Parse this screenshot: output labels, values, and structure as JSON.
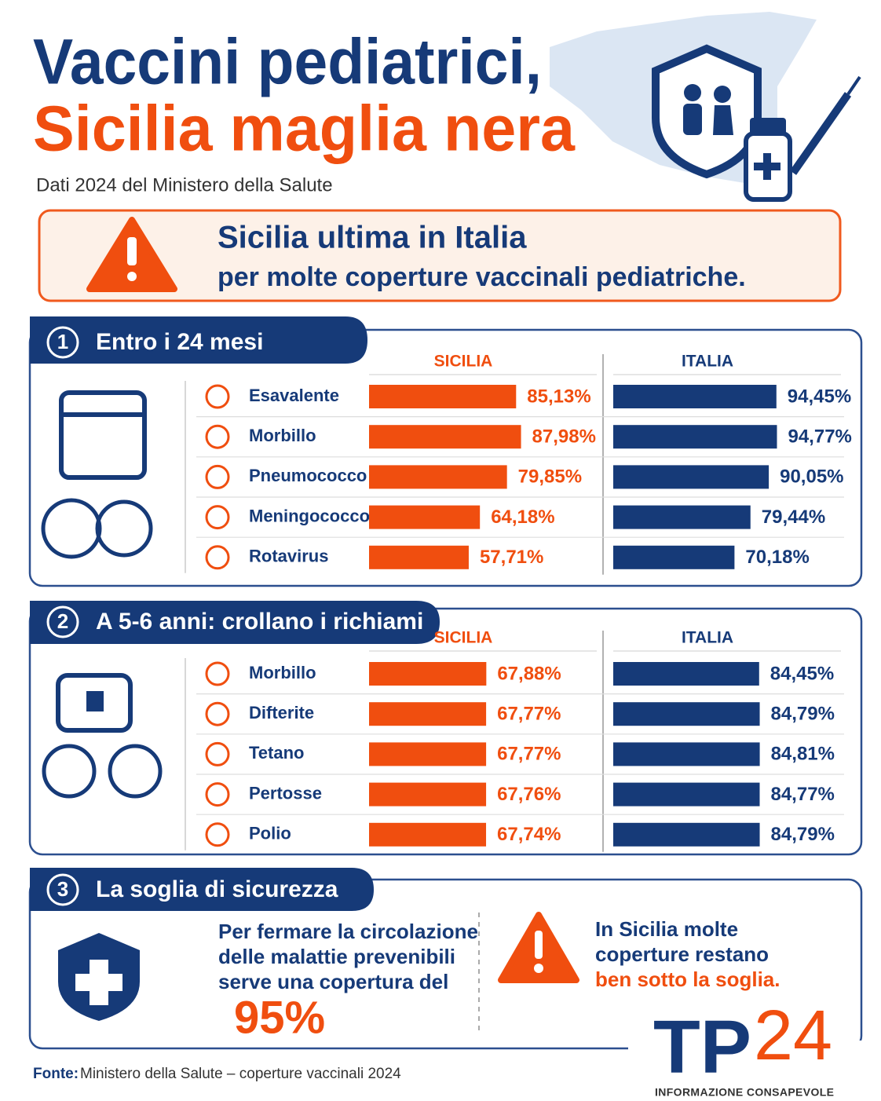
{
  "header": {
    "title_line1": "Vaccini pediatrici,",
    "title_line2": "Sicilia maglia nera",
    "subtitle": "Dati 2024 del Ministero della Salute"
  },
  "alert": {
    "line1": "Sicilia ultima in Italia",
    "line2": "per molte coperture vaccinali pediatriche."
  },
  "sections": [
    {
      "number": "1",
      "title": "Entro i 24 mesi",
      "chart_data": {
        "type": "bar",
        "orientation": "horizontal",
        "xlim": [
          0,
          100
        ],
        "categories": [
          "Esavalente",
          "Morbillo",
          "Pneumococco",
          "Meningococco B",
          "Rotavirus"
        ],
        "series": [
          {
            "name": "SICILIA",
            "color": "#f04e0f",
            "values": [
              85.13,
              87.98,
              79.85,
              64.18,
              57.71
            ],
            "value_labels": [
              "85,13%",
              "87,98%",
              "79,85%",
              "64,18%",
              "57,71%"
            ]
          },
          {
            "name": "ITALIA",
            "color": "#163a78",
            "values": [
              94.45,
              94.77,
              90.05,
              79.44,
              70.18
            ],
            "value_labels": [
              "94,45%",
              "94,77%",
              "90,05%",
              "79,44%",
              "70,18%"
            ]
          }
        ]
      }
    },
    {
      "number": "2",
      "title": "A 5-6 anni: crollano i richiami",
      "chart_data": {
        "type": "bar",
        "orientation": "horizontal",
        "xlim": [
          0,
          100
        ],
        "categories": [
          "Morbillo",
          "Difterite",
          "Tetano",
          "Pertosse",
          "Polio"
        ],
        "series": [
          {
            "name": "SICILIA",
            "color": "#f04e0f",
            "values": [
              67.88,
              67.77,
              67.77,
              67.76,
              67.74
            ],
            "value_labels": [
              "67,88%",
              "67,77%",
              "67,77%",
              "67,76%",
              "67,74%"
            ]
          },
          {
            "name": "ITALIA",
            "color": "#163a78",
            "values": [
              84.45,
              84.79,
              84.81,
              84.77,
              84.79
            ],
            "value_labels": [
              "84,45%",
              "84,79%",
              "84,81%",
              "84,77%",
              "84,79%"
            ]
          }
        ]
      }
    }
  ],
  "threshold_section": {
    "number": "3",
    "title": "La soglia di sicurezza",
    "left_lines": [
      "Per fermare la circolazione",
      "delle malattie prevenibili",
      "serve una copertura del"
    ],
    "threshold": "95%",
    "right_lines": [
      "In Sicilia molte",
      "coperture restano",
      "ben sotto la soglia."
    ]
  },
  "footer": {
    "source_label": "Fonte:",
    "source": "Ministero della Salute – coperture vaccinali 2024"
  },
  "logo": {
    "letters": "TP",
    "number": "24",
    "tagline": "INFORMAZIONE CONSAPEVOLE"
  }
}
